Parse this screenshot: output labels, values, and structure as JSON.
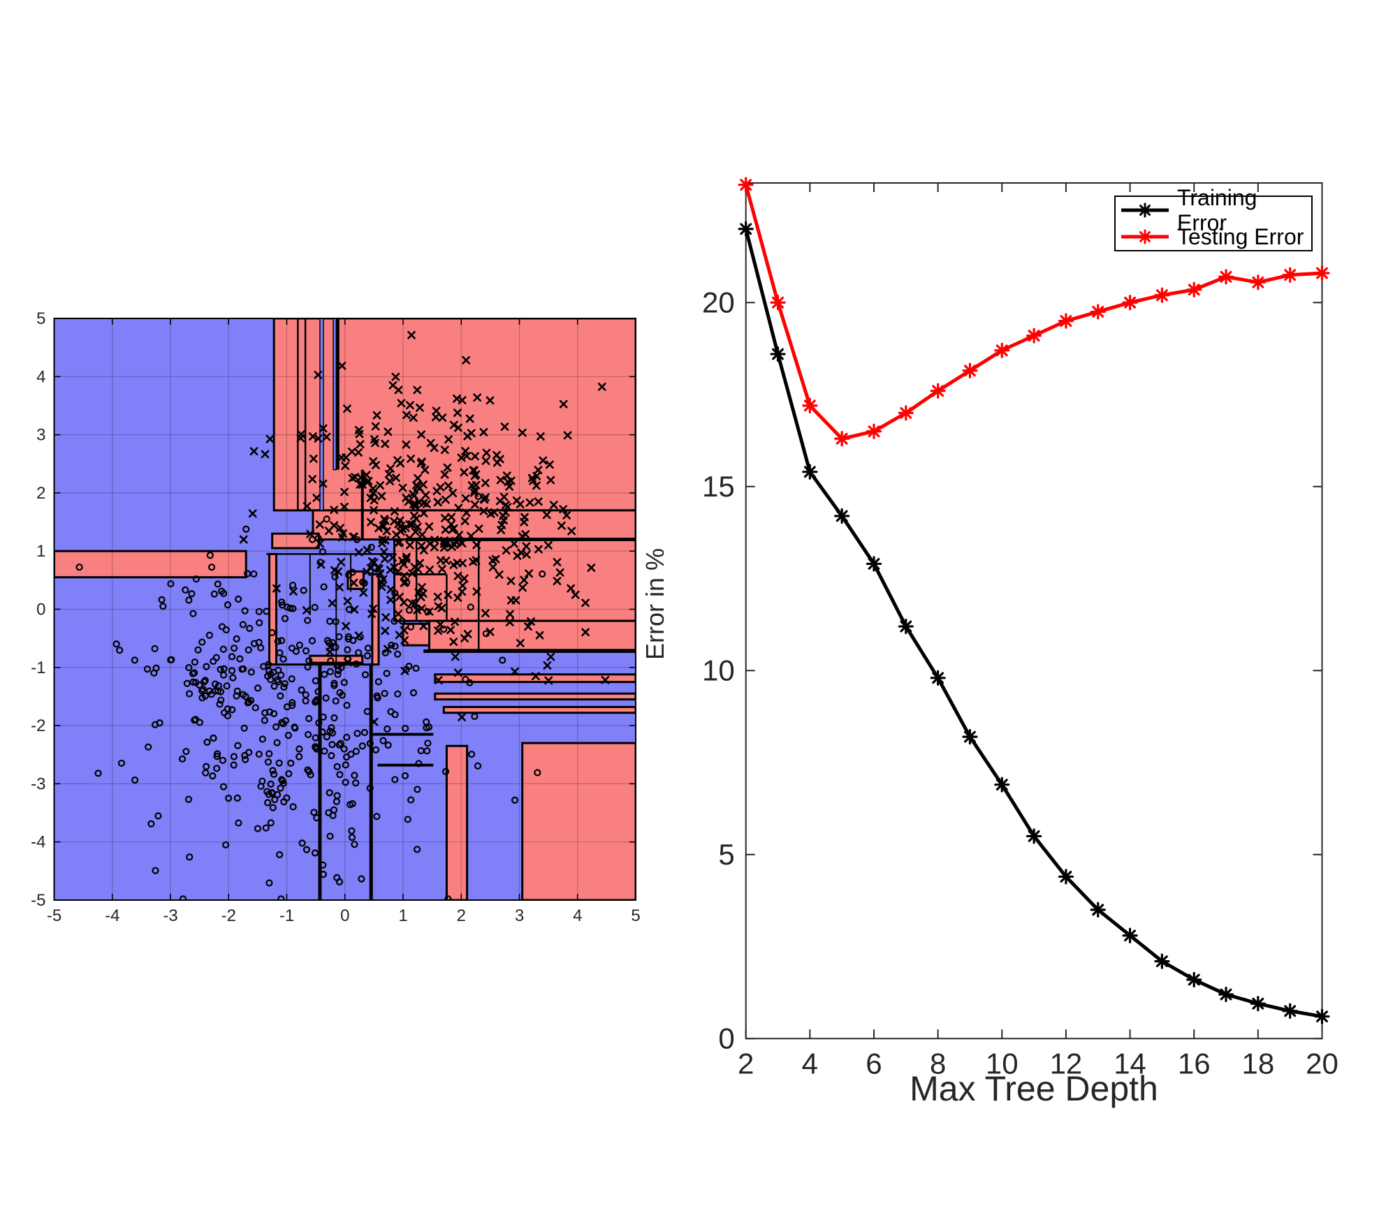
{
  "figure": {
    "background": "#ffffff",
    "text_color": "#262626"
  },
  "chart_data": [
    {
      "type": "scatter",
      "name": "decision-boundary-plot",
      "description": "Decision tree classification regions with training samples",
      "xlim": [
        -5,
        5
      ],
      "ylim": [
        -5,
        5
      ],
      "xticks": [
        -5,
        -4,
        -3,
        -2,
        -1,
        0,
        1,
        2,
        3,
        4,
        5
      ],
      "yticks": [
        -5,
        -4,
        -3,
        -2,
        -1,
        0,
        1,
        2,
        3,
        4,
        5
      ],
      "grid": true,
      "colors": {
        "class_o_region": "#8080f8",
        "class_x_region": "#f98080",
        "boundary": "#000000",
        "grid": "rgba(0,0,0,0.22)",
        "marker": "#000000"
      },
      "red_regions": [
        [
          -1.22,
          1.7,
          5,
          5
        ],
        [
          -0.55,
          1.2,
          5,
          1.7
        ],
        [
          -5,
          0.55,
          -1.7,
          1.0
        ],
        [
          -1.25,
          1.05,
          -0.45,
          1.3
        ],
        [
          -1.3,
          -0.95,
          -1.18,
          0.95
        ],
        [
          0.85,
          -0.2,
          5,
          1.2
        ],
        [
          1.45,
          -0.7,
          5,
          -0.2
        ],
        [
          1.0,
          -0.62,
          1.45,
          -0.25
        ],
        [
          0.47,
          -0.95,
          0.58,
          0.6
        ],
        [
          0.05,
          0.35,
          0.32,
          0.65
        ],
        [
          -0.6,
          -0.92,
          0.3,
          -0.8
        ],
        [
          1.55,
          -1.25,
          5,
          -1.12
        ],
        [
          1.55,
          -1.55,
          5,
          -1.45
        ],
        [
          1.7,
          -1.78,
          5,
          -1.68
        ],
        [
          3.05,
          -5,
          5,
          -2.3
        ],
        [
          1.75,
          -5,
          2.1,
          -2.35
        ]
      ],
      "blue_slivers": [
        [
          -0.43,
          1.7,
          -0.37,
          5
        ],
        [
          -0.2,
          2.4,
          -0.15,
          5
        ]
      ],
      "boundary_lines": [
        {
          "x1": 1.05,
          "y1": 1.2,
          "x2": 5,
          "y2": 1.2,
          "w": 5
        },
        {
          "x1": 1.35,
          "y1": -0.72,
          "x2": 5,
          "y2": -0.72,
          "w": 5
        },
        {
          "x1": -1.35,
          "y1": -0.95,
          "x2": 0.45,
          "y2": -0.95,
          "w": 3
        },
        {
          "x1": -0.43,
          "y1": -5,
          "x2": -0.43,
          "y2": -0.95,
          "w": 5
        },
        {
          "x1": 0.45,
          "y1": -5,
          "x2": 0.45,
          "y2": -0.95,
          "w": 5
        },
        {
          "x1": 0.45,
          "y1": -2.15,
          "x2": 1.52,
          "y2": -2.15,
          "w": 4
        },
        {
          "x1": 0.56,
          "y1": -2.68,
          "x2": 1.52,
          "y2": -2.68,
          "w": 4
        },
        {
          "x1": -0.81,
          "y1": 1.7,
          "x2": -0.81,
          "y2": 5,
          "w": 2.5
        },
        {
          "x1": -0.68,
          "y1": 1.7,
          "x2": -0.68,
          "y2": 5,
          "w": 2.5
        },
        {
          "x1": -0.12,
          "y1": 2.4,
          "x2": -0.12,
          "y2": 5,
          "w": 4
        },
        {
          "x1": 0.3,
          "y1": 1.2,
          "x2": 0.3,
          "y2": 2.4,
          "w": 4
        },
        {
          "x1": 2.3,
          "y1": -0.72,
          "x2": 2.3,
          "y2": 1.2,
          "w": 2.5
        },
        {
          "x1": 1.23,
          "y1": -0.2,
          "x2": 1.23,
          "y2": 1.2,
          "w": 2.5
        },
        {
          "x1": 0.85,
          "y1": 0.6,
          "x2": 1.75,
          "y2": 0.6,
          "w": 3
        },
        {
          "x1": 1.75,
          "y1": -0.2,
          "x2": 1.75,
          "y2": 0.6,
          "w": 2.5
        },
        {
          "x1": -1.35,
          "y1": 0.95,
          "x2": 0.85,
          "y2": 0.95,
          "w": 2.5
        },
        {
          "x1": -0.6,
          "y1": -0.1,
          "x2": -0.6,
          "y2": 0.95,
          "w": 2
        },
        {
          "x1": -0.15,
          "y1": -0.95,
          "x2": -0.15,
          "y2": 0.6,
          "w": 2
        },
        {
          "x1": 0.1,
          "y1": 0.3,
          "x2": 0.1,
          "y2": 0.95,
          "w": 2
        }
      ],
      "scatter_generator": {
        "seed": 1337,
        "classes": [
          {
            "marker": "circle",
            "n": 400,
            "cx": -0.85,
            "cy": -1.7,
            "sx": 1.3,
            "sy": 1.25
          },
          {
            "marker": "x",
            "n": 400,
            "cx": 1.45,
            "cy": 1.35,
            "sx": 1.25,
            "sy": 1.2
          }
        ]
      }
    },
    {
      "type": "line",
      "name": "error-vs-depth-plot",
      "xlabel": "Max Tree Depth",
      "ylabel": "Error in %",
      "x": [
        2,
        3,
        4,
        5,
        6,
        7,
        8,
        9,
        10,
        11,
        12,
        13,
        14,
        15,
        16,
        17,
        18,
        19,
        20
      ],
      "series": [
        {
          "name": "Training Error",
          "color": "#000000",
          "values": [
            22.0,
            18.6,
            15.4,
            14.2,
            12.9,
            11.2,
            9.8,
            8.2,
            6.9,
            5.5,
            4.4,
            3.5,
            2.8,
            2.1,
            1.6,
            1.2,
            0.95,
            0.75,
            0.6
          ]
        },
        {
          "name": "Testing Error",
          "color": "#ff0000",
          "values": [
            23.2,
            20.0,
            17.2,
            16.3,
            16.5,
            17.0,
            17.6,
            18.15,
            18.7,
            19.1,
            19.5,
            19.75,
            20.0,
            20.2,
            20.35,
            20.7,
            20.55,
            20.75,
            20.8
          ]
        }
      ],
      "xlim": [
        2,
        20
      ],
      "ylim": [
        0,
        23.25
      ],
      "xticks": [
        2,
        4,
        6,
        8,
        10,
        12,
        14,
        16,
        18,
        20
      ],
      "yticks": [
        0,
        5,
        10,
        15,
        20
      ],
      "grid": false,
      "marker": "asterisk",
      "legend": {
        "position": "top-right",
        "entries": [
          "Training Error",
          "Testing Error"
        ]
      }
    }
  ]
}
